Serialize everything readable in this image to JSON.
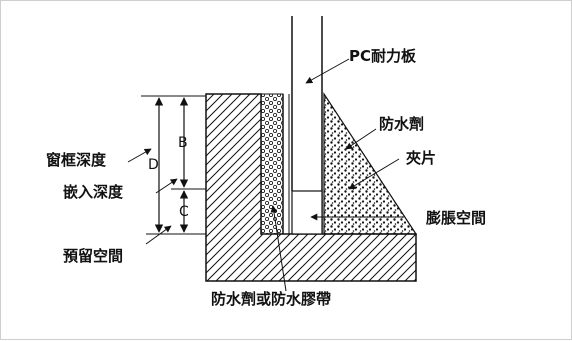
{
  "labels": {
    "pc_board": "PC耐力板",
    "waterproof_agent": "防水劑",
    "clip": "夾片",
    "expansion_space": "膨脹空間",
    "frame_depth": "窗框深度",
    "embed_depth": "嵌入深度",
    "reserved_space": "預留空間",
    "bottom_label": "防水劑或防水膠帶",
    "dim_b": "B",
    "dim_c": "C",
    "dim_d": "D"
  }
}
